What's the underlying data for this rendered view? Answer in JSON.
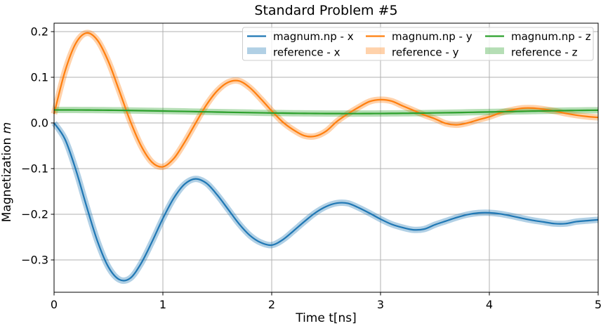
{
  "chart_data": {
    "type": "line",
    "title": "Standard Problem #5",
    "xlabel": "Time t[ns]",
    "ylabel": "Magnetization m",
    "ylabel_plain": "Magnetization ",
    "ylabel_italic": "m",
    "xlim": [
      0,
      5
    ],
    "ylim": [
      -0.371,
      0.219
    ],
    "grid": true,
    "grid_color": "#b0b0b0",
    "legend_position": "upper right",
    "legend_ncols": 3,
    "xticks": [
      0,
      1,
      2,
      3,
      4,
      5
    ],
    "yticks": [
      0.2,
      0.1,
      0.0,
      -0.1,
      -0.2,
      -0.3
    ],
    "xtick_labels": [
      "0",
      "1",
      "2",
      "3",
      "4",
      "5"
    ],
    "ytick_labels": [
      "0.2",
      "0.1",
      "0.0",
      "−0.1",
      "−0.2",
      "−0.3"
    ],
    "x": [
      0.0,
      0.1,
      0.2,
      0.3,
      0.4,
      0.5,
      0.6,
      0.7,
      0.8,
      0.9,
      1.0,
      1.1,
      1.2,
      1.3,
      1.4,
      1.5,
      1.6,
      1.7,
      1.8,
      1.9,
      2.0,
      2.1,
      2.2,
      2.3,
      2.4,
      2.5,
      2.6,
      2.7,
      2.8,
      2.9,
      3.0,
      3.1,
      3.2,
      3.3,
      3.4,
      3.5,
      3.6,
      3.7,
      3.8,
      3.9,
      4.0,
      4.1,
      4.2,
      4.3,
      4.4,
      4.5,
      4.6,
      4.7,
      4.8,
      4.9,
      5.0
    ],
    "components": [
      {
        "axis": "x",
        "line_label": "magnum.np - x",
        "band_label": "reference - x",
        "color": "#1f77b4",
        "band_alpha": 0.35,
        "line_width": 2.2,
        "band_width": 9,
        "values": [
          0.0,
          -0.0354,
          -0.1026,
          -0.1837,
          -0.2598,
          -0.3157,
          -0.343,
          -0.34,
          -0.3074,
          -0.2603,
          -0.2092,
          -0.1647,
          -0.134,
          -0.1225,
          -0.132,
          -0.1578,
          -0.1893,
          -0.221,
          -0.2464,
          -0.262,
          -0.2675,
          -0.256,
          -0.2365,
          -0.216,
          -0.1969,
          -0.183,
          -0.1755,
          -0.176,
          -0.1857,
          -0.1977,
          -0.2106,
          -0.2217,
          -0.229,
          -0.234,
          -0.2325,
          -0.2229,
          -0.2149,
          -0.207,
          -0.2006,
          -0.1971,
          -0.1967,
          -0.1991,
          -0.2035,
          -0.2087,
          -0.2134,
          -0.2169,
          -0.2205,
          -0.2205,
          -0.2161,
          -0.214,
          -0.212
        ]
      },
      {
        "axis": "y",
        "line_label": "magnum.np - y",
        "band_label": "reference - y",
        "color": "#ff7f0e",
        "band_alpha": 0.35,
        "line_width": 2.2,
        "band_width": 9,
        "values": [
          0.02,
          0.1126,
          0.1744,
          0.197,
          0.1807,
          0.1341,
          0.07,
          0.0042,
          -0.0502,
          -0.086,
          -0.096,
          -0.078,
          -0.0422,
          -0.0008,
          0.0394,
          0.0705,
          0.089,
          0.092,
          0.077,
          0.0527,
          0.0265,
          0.0023,
          -0.0153,
          -0.028,
          -0.029,
          -0.018,
          0.0035,
          0.02,
          0.0344,
          0.047,
          0.051,
          0.048,
          0.0377,
          0.0278,
          0.0176,
          0.0091,
          -0.001,
          -0.004,
          0.0,
          0.007,
          0.0135,
          0.022,
          0.028,
          0.0322,
          0.0325,
          0.03,
          0.026,
          0.021,
          0.017,
          0.014,
          0.012
        ]
      },
      {
        "axis": "z",
        "line_label": "magnum.np - z",
        "band_label": "reference - z",
        "color": "#2ca02c",
        "band_alpha": 0.35,
        "line_width": 2.2,
        "band_width": 9,
        "values": [
          0.0285,
          0.0285,
          0.0284,
          0.0283,
          0.0281,
          0.0279,
          0.0276,
          0.0273,
          0.0269,
          0.0265,
          0.0261,
          0.0257,
          0.0253,
          0.0248,
          0.0243,
          0.0239,
          0.0234,
          0.023,
          0.0226,
          0.0222,
          0.0218,
          0.0215,
          0.0212,
          0.021,
          0.0208,
          0.0206,
          0.0206,
          0.0205,
          0.0205,
          0.0206,
          0.0207,
          0.0209,
          0.0211,
          0.0213,
          0.0216,
          0.022,
          0.0224,
          0.0227,
          0.0232,
          0.0236,
          0.0241,
          0.0245,
          0.025,
          0.0254,
          0.0259,
          0.0263,
          0.0267,
          0.0271,
          0.0274,
          0.0277,
          0.0279
        ]
      }
    ]
  }
}
